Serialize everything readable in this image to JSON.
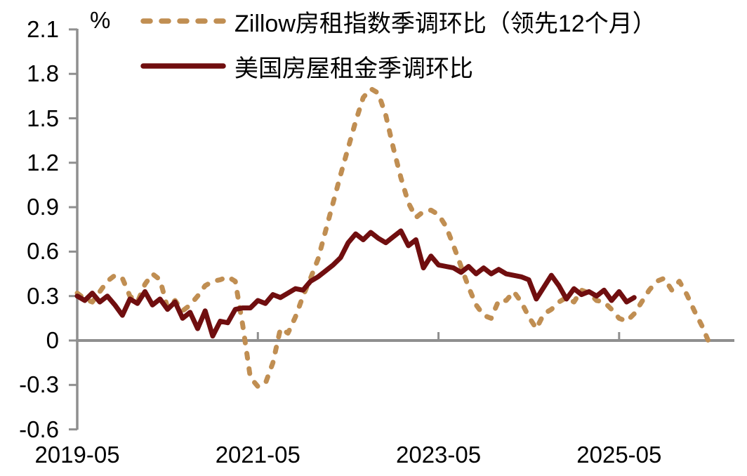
{
  "chart_data": {
    "type": "line",
    "title": "",
    "y_unit": "%",
    "x_start_month": "2019-05",
    "x_frequency": "monthly",
    "x_tick_labels": [
      "2019-05",
      "2021-05",
      "2023-05",
      "2025-05"
    ],
    "x_tick_month_index": [
      0,
      24,
      48,
      72
    ],
    "y_tick_labels": [
      "2.1",
      "1.8",
      "1.5",
      "1.2",
      "0.9",
      "0.6",
      "0.3",
      "0",
      "-0.3",
      "-0.6"
    ],
    "ylim": [
      -0.6,
      2.1
    ],
    "y_tick_step": 0.3,
    "grid": false,
    "zero_baseline": true,
    "legend_position": "top-left",
    "axis_color": "#8F8F8F",
    "text_color": "#000000",
    "background_color": "#FFFFFF",
    "series": [
      {
        "name": "Zillow房租指数季调环比（领先12个月）",
        "style": "dashed",
        "color": "#C08E52",
        "x_end_month": "2026-05",
        "values": [
          0.32,
          0.28,
          0.26,
          0.33,
          0.4,
          0.44,
          0.42,
          0.3,
          0.26,
          0.38,
          0.45,
          0.41,
          0.22,
          0.27,
          0.2,
          0.24,
          0.3,
          0.37,
          0.4,
          0.41,
          0.43,
          0.4,
          0.1,
          -0.25,
          -0.31,
          -0.29,
          -0.15,
          0.08,
          0.05,
          0.16,
          0.3,
          0.42,
          0.55,
          0.74,
          0.93,
          1.12,
          1.3,
          1.48,
          1.64,
          1.7,
          1.67,
          1.52,
          1.3,
          1.1,
          0.93,
          0.83,
          0.87,
          0.88,
          0.85,
          0.77,
          0.64,
          0.5,
          0.36,
          0.24,
          0.17,
          0.15,
          0.27,
          0.27,
          0.33,
          0.26,
          0.16,
          0.08,
          0.18,
          0.21,
          0.26,
          0.29,
          0.26,
          0.34,
          0.32,
          0.27,
          0.26,
          0.21,
          0.15,
          0.13,
          0.18,
          0.26,
          0.34,
          0.4,
          0.42,
          0.34,
          0.4,
          0.31,
          0.2,
          0.1,
          -0.02
        ]
      },
      {
        "name": "美国房屋租金季调环比",
        "style": "solid",
        "color": "#700E0F",
        "x_end_month": "2025-07",
        "values": [
          0.3,
          0.27,
          0.32,
          0.26,
          0.3,
          0.24,
          0.17,
          0.28,
          0.25,
          0.33,
          0.24,
          0.28,
          0.21,
          0.26,
          0.15,
          0.19,
          0.08,
          0.2,
          0.03,
          0.13,
          0.12,
          0.21,
          0.22,
          0.22,
          0.27,
          0.25,
          0.31,
          0.29,
          0.32,
          0.35,
          0.34,
          0.4,
          0.43,
          0.47,
          0.51,
          0.56,
          0.66,
          0.72,
          0.68,
          0.73,
          0.69,
          0.66,
          0.7,
          0.74,
          0.64,
          0.68,
          0.49,
          0.57,
          0.51,
          0.5,
          0.49,
          0.46,
          0.5,
          0.45,
          0.49,
          0.45,
          0.48,
          0.45,
          0.44,
          0.43,
          0.41,
          0.28,
          0.36,
          0.44,
          0.37,
          0.28,
          0.35,
          0.31,
          0.33,
          0.3,
          0.34,
          0.27,
          0.33,
          0.26,
          0.29
        ]
      }
    ]
  }
}
